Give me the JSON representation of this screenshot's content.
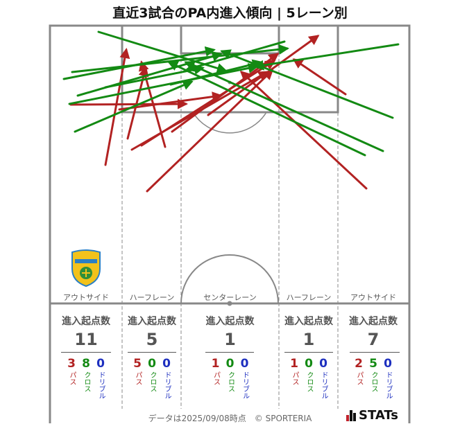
{
  "title": "直近3試合のPA内進入傾向 | 5レーン別",
  "colors": {
    "pass": "#b22222",
    "cross": "#138a13",
    "dribble": "#1d2fbf",
    "pitch_line": "#888888"
  },
  "lanes": [
    {
      "name": "アウトサイド",
      "header": "進入起点数",
      "total": "11",
      "pass": "3",
      "cross": "8",
      "dribble": "0"
    },
    {
      "name": "ハーフレーン",
      "header": "進入起点数",
      "total": "5",
      "pass": "5",
      "cross": "0",
      "dribble": "0"
    },
    {
      "name": "センターレーン",
      "header": "進入起点数",
      "total": "1",
      "pass": "1",
      "cross": "0",
      "dribble": "0"
    },
    {
      "name": "ハーフレーン",
      "header": "進入起点数",
      "total": "1",
      "pass": "1",
      "cross": "0",
      "dribble": "0"
    },
    {
      "name": "アウトサイド",
      "header": "進入起点数",
      "total": "7",
      "pass": "2",
      "cross": "5",
      "dribble": "0"
    }
  ],
  "labels": {
    "pass": "パス",
    "cross": "クロス",
    "dribble": "ドリブル"
  },
  "footer": "データは2025/09/08時点　© SPORTERIA",
  "brand": "STATs",
  "chart_data": {
    "type": "scatter",
    "description": "",
    "arrows": [
      {
        "kind": "pass",
        "from": [
          152,
          238
        ],
        "to": [
          182,
          72
        ]
      },
      {
        "kind": "pass",
        "from": [
          238,
          212
        ],
        "to": [
          204,
          90
        ]
      },
      {
        "kind": "pass",
        "from": [
          184,
          200
        ],
        "to": [
          210,
          98
        ]
      },
      {
        "kind": "pass",
        "from": [
          102,
          151
        ],
        "to": [
          268,
          150
        ]
      },
      {
        "kind": "pass",
        "from": [
          172,
          158
        ],
        "to": [
          318,
          138
        ]
      },
      {
        "kind": "pass",
        "from": [
          190,
          216
        ],
        "to": [
          385,
          104
        ]
      },
      {
        "kind": "pass",
        "from": [
          204,
          210
        ],
        "to": [
          395,
          88
        ]
      },
      {
        "kind": "pass",
        "from": [
          212,
          276
        ],
        "to": [
          392,
          102
        ]
      },
      {
        "kind": "pass",
        "from": [
          248,
          190
        ],
        "to": [
          400,
          78
        ]
      },
      {
        "kind": "pass",
        "from": [
          300,
          166
        ],
        "to": [
          458,
          52
        ]
      },
      {
        "kind": "pass",
        "from": [
          528,
          272
        ],
        "to": [
          348,
          104
        ]
      },
      {
        "kind": "pass",
        "from": [
          498,
          136
        ],
        "to": [
          424,
          86
        ]
      },
      {
        "kind": "cross",
        "from": [
          142,
          46
        ],
        "to": [
          325,
          102
        ]
      },
      {
        "kind": "cross",
        "from": [
          92,
          114
        ],
        "to": [
          308,
          72
        ]
      },
      {
        "kind": "cross",
        "from": [
          104,
          104
        ],
        "to": [
          414,
          70
        ]
      },
      {
        "kind": "cross",
        "from": [
          108,
          190
        ],
        "to": [
          276,
          118
        ]
      },
      {
        "kind": "cross",
        "from": [
          100,
          150
        ],
        "to": [
          370,
          96
        ]
      },
      {
        "kind": "cross",
        "from": [
          246,
          122
        ],
        "to": [
          376,
          90
        ]
      },
      {
        "kind": "cross",
        "from": [
          152,
          126
        ],
        "to": [
          292,
          98
        ]
      },
      {
        "kind": "cross",
        "from": [
          112,
          138
        ],
        "to": [
          318,
          78
        ]
      },
      {
        "kind": "cross",
        "from": [
          574,
          64
        ],
        "to": [
          368,
          96
        ]
      },
      {
        "kind": "cross",
        "from": [
          566,
          170
        ],
        "to": [
          320,
          74
        ]
      },
      {
        "kind": "cross",
        "from": [
          552,
          218
        ],
        "to": [
          268,
          90
        ]
      },
      {
        "kind": "cross",
        "from": [
          526,
          224
        ],
        "to": [
          244,
          90
        ]
      },
      {
        "kind": "cross",
        "from": [
          410,
          60
        ],
        "to": [
          270,
          100
        ]
      }
    ]
  }
}
